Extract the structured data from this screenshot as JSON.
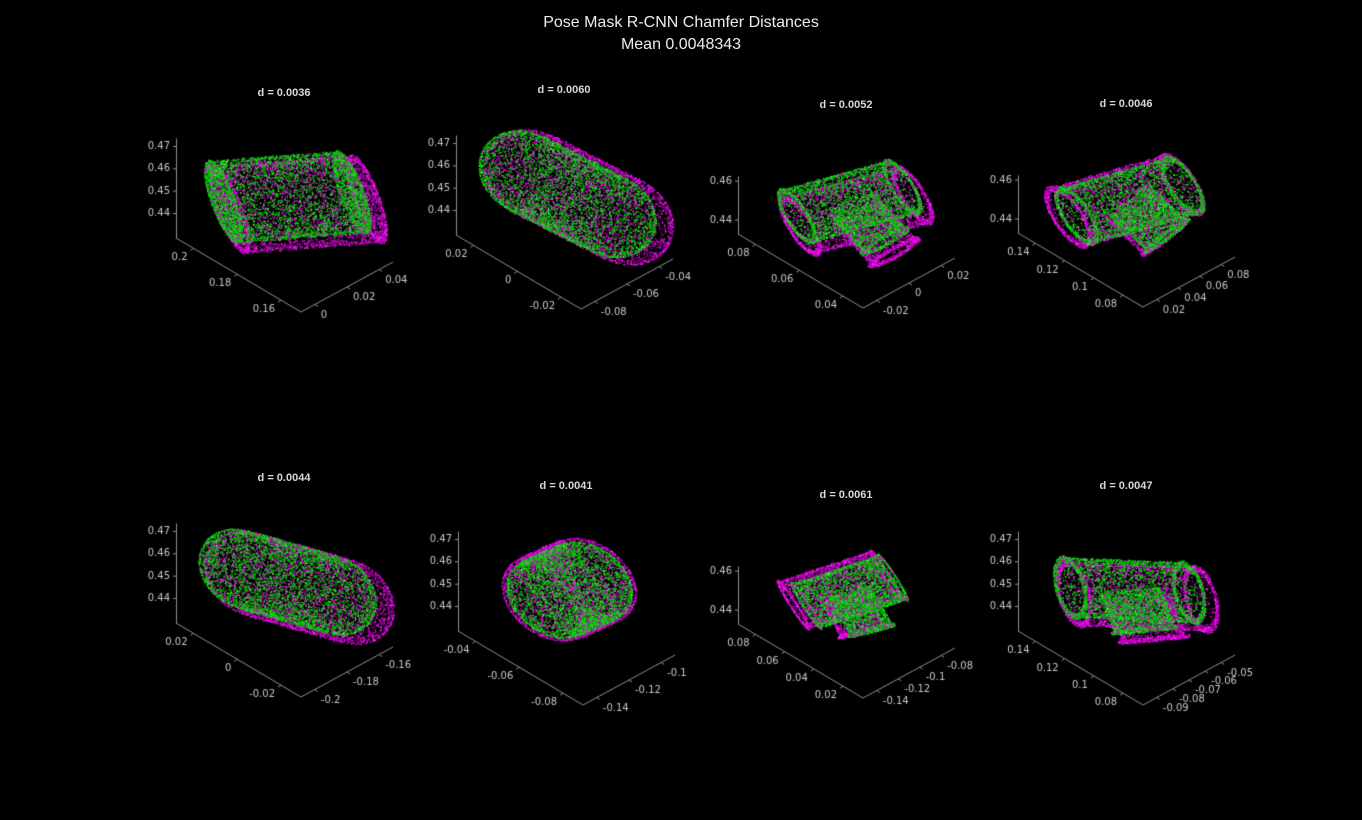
{
  "title": {
    "line1": "Pose Mask R-CNN Chamfer Distances",
    "line2": "Mean 0.0048343"
  },
  "colors": {
    "background": "#000000",
    "green": "#00cc00",
    "magenta": "#cc00cc",
    "axis": "#8f8f8f",
    "tick_text": "#c6c6c6",
    "title_text": "#ededed",
    "subplot_title_text": "#d8d8d8"
  },
  "chart_data": {
    "type": "scatter",
    "projection": "3d",
    "title": "Pose Mask R-CNN Chamfer Distances",
    "subtitle": "Mean 0.0048343",
    "mean_chamfer_distance": 0.0048343,
    "point_cloud_colors": [
      "#00cc00",
      "#cc00cc"
    ],
    "layout": {
      "rows": 2,
      "cols": 4,
      "grid": false,
      "background": "#000000",
      "legend": "none"
    },
    "plots": [
      {
        "title": "d = 0.0036",
        "chamfer_distance": 0.0036,
        "zticks": [
          "0.47",
          "0.46",
          "0.45",
          "0.44"
        ],
        "left_ticks": [
          "0.2",
          "0.18",
          "0.16"
        ],
        "right_ticks": [
          "0.04",
          "0.02",
          "0"
        ],
        "axis_size": "tall",
        "shape": {
          "type": "cylinder",
          "axis": [
            0.5,
            0.85,
            0.05
          ],
          "half_len": 0.45,
          "radius": 0.3
        },
        "magenta_offset": [
          0.05,
          0.05,
          -0.06
        ]
      },
      {
        "title": "d = 0.0060",
        "chamfer_distance": 0.006,
        "zticks": [
          "0.47",
          "0.46",
          "0.45",
          "0.44"
        ],
        "left_ticks": [
          "0.02",
          "0",
          "-0.02"
        ],
        "right_ticks": [
          "-0.04",
          "-0.06",
          "-0.08"
        ],
        "axis_size": "tall",
        "shape": {
          "type": "capsule",
          "axis": [
            0.75,
            0.45,
            -0.35
          ],
          "half_len": 0.3,
          "radius": 0.32
        },
        "magenta_offset": [
          0.03,
          0.08,
          -0.05
        ]
      },
      {
        "title": "d = 0.0052",
        "chamfer_distance": 0.0052,
        "zticks": [
          "0.46",
          "0.44"
        ],
        "left_ticks": [
          "0.08",
          "0.06",
          "0.04"
        ],
        "right_ticks": [
          "0.02",
          "0",
          "-0.02"
        ],
        "axis_size": "short",
        "shape": {
          "type": "tee",
          "axis": [
            0.3,
            0.92,
            0.1
          ],
          "half_len": 0.42,
          "radius": 0.2,
          "branch_axis": [
            0.75,
            0.1,
            -0.65
          ],
          "branch_len": 0.34,
          "branch_radius": 0.18
        },
        "magenta_offset": [
          0.04,
          0.02,
          -0.07
        ]
      },
      {
        "title": "d = 0.0046",
        "chamfer_distance": 0.0046,
        "zticks": [
          "0.46",
          "0.44"
        ],
        "left_ticks": [
          "0.14",
          "0.12",
          "0.1",
          "0.08"
        ],
        "right_ticks": [
          "0.08",
          "0.06",
          "0.04",
          "0.02"
        ],
        "axis_size": "short",
        "shape": {
          "type": "tee",
          "axis": [
            0.25,
            0.95,
            0.05
          ],
          "half_len": 0.44,
          "radius": 0.21,
          "branch_axis": [
            0.8,
            0.15,
            -0.55
          ],
          "branch_len": 0.32,
          "branch_radius": 0.19
        },
        "magenta_offset": [
          -0.06,
          0.03,
          -0.06
        ]
      },
      {
        "title": "d = 0.0044",
        "chamfer_distance": 0.0044,
        "zticks": [
          "0.47",
          "0.46",
          "0.45",
          "0.44"
        ],
        "left_ticks": [
          "0.02",
          "0",
          "-0.02"
        ],
        "right_ticks": [
          "-0.16",
          "-0.18",
          "-0.2"
        ],
        "axis_size": "tall",
        "shape": {
          "type": "capsule",
          "axis": [
            0.6,
            0.7,
            -0.3
          ],
          "half_len": 0.32,
          "radius": 0.3
        },
        "magenta_offset": [
          0.05,
          0.06,
          -0.05
        ]
      },
      {
        "title": "d = 0.0041",
        "chamfer_distance": 0.0041,
        "zticks": [
          "0.47",
          "0.46",
          "0.45",
          "0.44"
        ],
        "left_ticks": [
          "-0.04",
          "-0.06",
          "-0.08"
        ],
        "right_ticks": [
          "-0.1",
          "-0.12",
          "-0.14"
        ],
        "axis_size": "tall",
        "shape": {
          "type": "capsule",
          "axis": [
            0.5,
            0.5,
            0.6
          ],
          "half_len": 0.16,
          "radius": 0.3
        },
        "magenta_offset": [
          -0.04,
          0.05,
          -0.05
        ]
      },
      {
        "title": "d = 0.0061",
        "chamfer_distance": 0.0061,
        "zticks": [
          "0.46",
          "0.44"
        ],
        "left_ticks": [
          "0.08",
          "0.06",
          "0.04",
          "0.02"
        ],
        "right_ticks": [
          "-0.08",
          "-0.1",
          "-0.12",
          "-0.14"
        ],
        "axis_size": "short",
        "shape": {
          "type": "tee",
          "axis": [
            0.4,
            0.8,
            0.3
          ],
          "half_len": 0.33,
          "radius": 0.17,
          "branch_axis": [
            0.7,
            -0.2,
            -0.6
          ],
          "branch_len": 0.3,
          "branch_radius": 0.15
        },
        "magenta_offset": [
          -0.08,
          0.0,
          -0.04
        ]
      },
      {
        "title": "d = 0.0047",
        "chamfer_distance": 0.0047,
        "zticks": [
          "0.47",
          "0.46",
          "0.45",
          "0.44"
        ],
        "left_ticks": [
          "0.14",
          "0.12",
          "0.1",
          "0.08"
        ],
        "right_ticks": [
          "-0.05",
          "-0.06",
          "-0.07",
          "-0.08",
          "-0.09"
        ],
        "axis_size": "tall",
        "shape": {
          "type": "tee",
          "axis": [
            0.45,
            0.85,
            -0.15
          ],
          "half_len": 0.43,
          "radius": 0.22,
          "branch_axis": [
            0.6,
            -0.3,
            -0.65
          ],
          "branch_len": 0.3,
          "branch_radius": 0.2
        },
        "magenta_offset": [
          0.02,
          0.06,
          -0.08
        ]
      }
    ]
  }
}
